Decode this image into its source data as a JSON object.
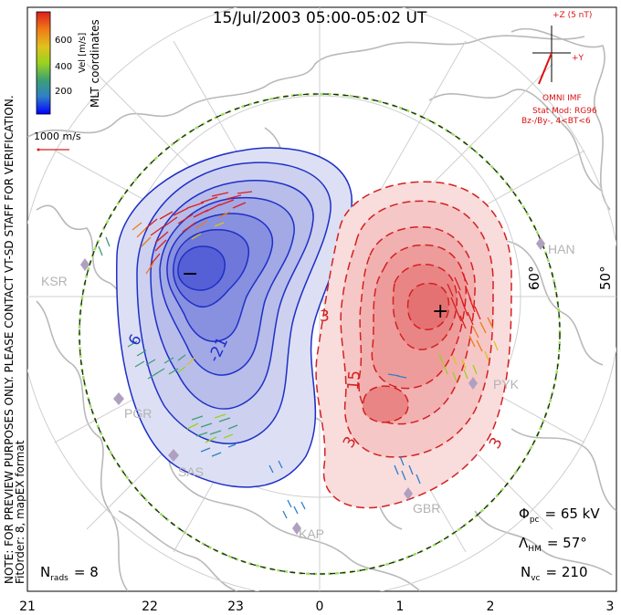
{
  "title": "15/Jul/2003 05:00-05:02 UT",
  "side_note": {
    "line1": "NOTE: FOR PREVIEW PURPOSES ONLY. PLEASE CONTACT VT-SD STAFF FOR VERIFICATION.",
    "line2": "FitOrder: 8, mapEX format"
  },
  "coord_label": "MLT coordinates",
  "colorbar": {
    "label": "Vel [m/s]",
    "ticks": [
      "600",
      "400",
      "200"
    ],
    "colors": [
      "#0000ff",
      "#2f7fc9",
      "#5aa05a",
      "#9ad21f",
      "#e0c21e",
      "#f07a16",
      "#dc1e1e"
    ]
  },
  "scale_vector": "1000 m/s",
  "imf": {
    "z_label": "+Z (5 nT)",
    "y_label": "+Y",
    "source": "OMNI IMF",
    "model_line1": "Stat Mod: RG96",
    "model_line2": "Bz-/By-, 4<BT<6",
    "color": "#dd1111"
  },
  "latitude_labels": [
    "60°",
    "50°"
  ],
  "mlt_labels": [
    "21",
    "22",
    "23",
    "0",
    "1",
    "2",
    "3"
  ],
  "stations": [
    "KSR",
    "PGR",
    "SAS",
    "KAP",
    "GBR",
    "PYK",
    "HAN"
  ],
  "contour_labels": [
    "6",
    "-21",
    "3",
    "15",
    "3",
    "3"
  ],
  "extrema": {
    "min": "−",
    "max": "+"
  },
  "stats": {
    "nrads": "N",
    "nrads_sub": "rads",
    "nrads_val": "= 8",
    "phi": "Φ",
    "phi_sub": "pc",
    "phi_val": "= 65 kV",
    "lam": "Λ",
    "lam_sub": "HM",
    "lam_val": "= 57°",
    "nvc": "N",
    "nvc_sub": "vc",
    "nvc_val": "= 210"
  }
}
